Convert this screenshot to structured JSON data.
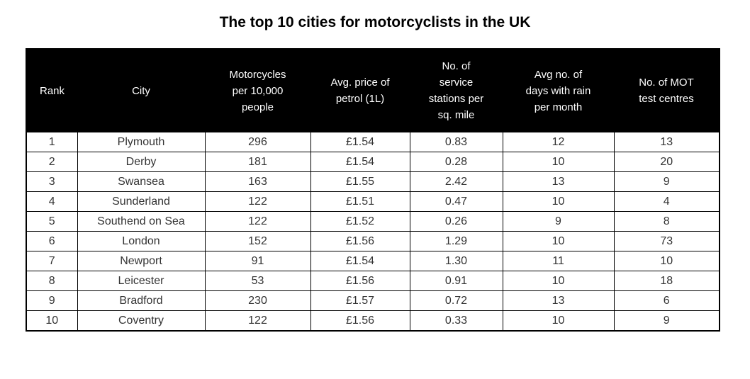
{
  "colors": {
    "header_bg": "#000000",
    "header_text": "#ffffff",
    "body_text": "#333333",
    "border": "#000000",
    "page_bg": "#ffffff"
  },
  "chart_data": {
    "type": "table",
    "title": "The top 10 cities for motorcyclists in the UK",
    "columns": [
      "Rank",
      "City",
      "Motorcycles per 10,000 people",
      "Avg. price of petrol (1L)",
      "No. of service stations per sq. mile",
      "Avg no. of days with rain per month",
      "No. of MOT test centres"
    ],
    "rows": [
      [
        "1",
        "Plymouth",
        "296",
        "£1.54",
        "0.83",
        "12",
        "13"
      ],
      [
        "2",
        "Derby",
        "181",
        "£1.54",
        "0.28",
        "10",
        "20"
      ],
      [
        "3",
        "Swansea",
        "163",
        "£1.55",
        "2.42",
        "13",
        "9"
      ],
      [
        "4",
        "Sunderland",
        "122",
        "£1.51",
        "0.47",
        "10",
        "4"
      ],
      [
        "5",
        "Southend on Sea",
        "122",
        "£1.52",
        "0.26",
        "9",
        "8"
      ],
      [
        "6",
        "London",
        "152",
        "£1.56",
        "1.29",
        "10",
        "73"
      ],
      [
        "7",
        "Newport",
        "91",
        "£1.54",
        "1.30",
        "11",
        "10"
      ],
      [
        "8",
        "Leicester",
        "53",
        "£1.56",
        "0.91",
        "10",
        "18"
      ],
      [
        "9",
        "Bradford",
        "230",
        "£1.57",
        "0.72",
        "13",
        "6"
      ],
      [
        "10",
        "Coventry",
        "122",
        "£1.56",
        "0.33",
        "10",
        "9"
      ]
    ],
    "layout": {
      "legend": "none",
      "grid": "all-borders",
      "header_style": "black-bar-white-text"
    }
  }
}
